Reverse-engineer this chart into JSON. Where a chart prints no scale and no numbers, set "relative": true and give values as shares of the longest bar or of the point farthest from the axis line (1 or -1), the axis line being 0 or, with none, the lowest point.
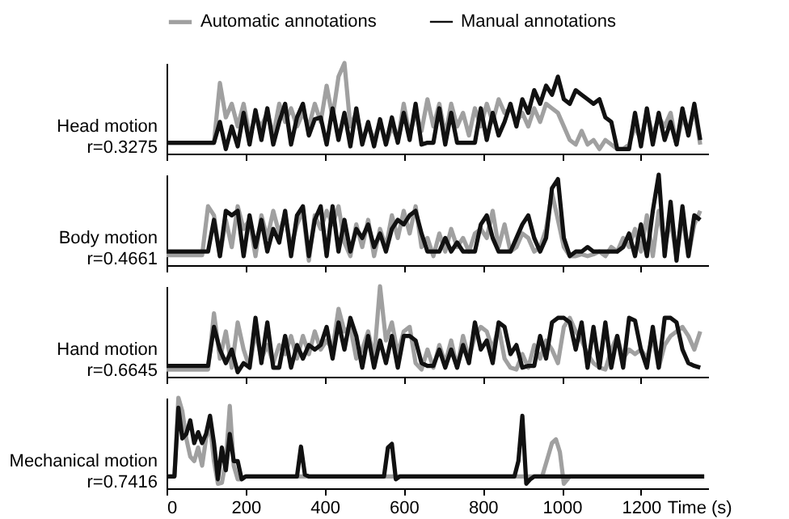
{
  "chart_data": [
    {
      "type": "line",
      "relative": true,
      "ylabel": "Head motion\nr=0.3275",
      "legend": "top",
      "xlim": [
        0,
        1370
      ],
      "xticks": [
        0,
        200,
        400,
        600,
        800,
        1000,
        1200
      ],
      "tick_labels": false,
      "x": [
        0,
        15,
        30,
        45,
        60,
        75,
        90,
        105,
        120,
        135,
        150,
        165,
        180,
        195,
        210,
        225,
        240,
        255,
        270,
        285,
        300,
        315,
        330,
        345,
        360,
        375,
        390,
        405,
        420,
        435,
        450,
        465,
        480,
        495,
        510,
        525,
        540,
        555,
        570,
        585,
        600,
        615,
        630,
        645,
        660,
        675,
        690,
        705,
        720,
        735,
        750,
        765,
        780,
        795,
        810,
        825,
        840,
        855,
        870,
        885,
        900,
        915,
        930,
        945,
        960,
        975,
        990,
        1005,
        1020,
        1035,
        1050,
        1065,
        1080,
        1095,
        1110,
        1125,
        1140,
        1155,
        1170,
        1185,
        1200,
        1215,
        1230,
        1245,
        1260,
        1275,
        1290,
        1305,
        1320,
        1335,
        1350
      ],
      "series": [
        {
          "name": "Automatic annotations",
          "color": "#a0a0a0",
          "values": [
            0.12,
            0.12,
            0.12,
            0.12,
            0.12,
            0.12,
            0.12,
            0.12,
            0.12,
            0.78,
            0.4,
            0.55,
            0.3,
            0.55,
            0.2,
            0.4,
            0.3,
            0.45,
            0.2,
            0.55,
            0.35,
            0.5,
            0.3,
            0.45,
            0.3,
            0.55,
            0.35,
            0.75,
            0.4,
            0.85,
            1.0,
            0.3,
            0.45,
            0.15,
            0.3,
            0.15,
            0.35,
            0.1,
            0.3,
            0.15,
            0.55,
            0.2,
            0.45,
            0.25,
            0.6,
            0.3,
            0.55,
            0.2,
            0.55,
            0.3,
            0.45,
            0.2,
            0.5,
            0.3,
            0.55,
            0.35,
            0.6,
            0.45,
            0.5,
            0.35,
            0.45,
            0.3,
            0.5,
            0.35,
            0.55,
            0.5,
            0.45,
            0.3,
            0.15,
            0.1,
            0.25,
            0.1,
            0.15,
            0.05,
            0.15,
            0.1,
            0.05,
            0.05,
            0.1,
            0.3,
            0.15,
            0.45,
            0.2,
            0.4,
            0.3,
            0.45,
            0.1,
            0.4,
            0.25,
            0.5,
            0.1
          ]
        },
        {
          "name": "Manual annotations",
          "color": "#111111",
          "values": [
            0.12,
            0.12,
            0.12,
            0.12,
            0.12,
            0.12,
            0.12,
            0.12,
            0.12,
            0.35,
            0.05,
            0.3,
            0.08,
            0.45,
            0.1,
            0.48,
            0.15,
            0.5,
            0.1,
            0.35,
            0.55,
            0.1,
            0.4,
            0.55,
            0.2,
            0.38,
            0.4,
            0.1,
            0.5,
            0.15,
            0.45,
            0.08,
            0.5,
            0.1,
            0.35,
            0.08,
            0.38,
            0.1,
            0.4,
            0.12,
            0.45,
            0.15,
            0.55,
            0.1,
            0.12,
            0.12,
            0.5,
            0.1,
            0.45,
            0.12,
            0.12,
            0.12,
            0.12,
            0.5,
            0.15,
            0.45,
            0.2,
            0.35,
            0.55,
            0.3,
            0.6,
            0.45,
            0.7,
            0.55,
            0.75,
            0.65,
            0.85,
            0.6,
            0.55,
            0.7,
            0.65,
            0.6,
            0.55,
            0.6,
            0.4,
            0.35,
            0.05,
            0.05,
            0.05,
            0.45,
            0.08,
            0.5,
            0.1,
            0.45,
            0.15,
            0.35,
            0.1,
            0.5,
            0.2,
            0.55,
            0.15
          ]
        }
      ]
    },
    {
      "type": "line",
      "relative": true,
      "ylabel": "Body motion\nr=0.4661",
      "xlim": [
        0,
        1370
      ],
      "xticks": [
        0,
        200,
        400,
        600,
        800,
        1000,
        1200
      ],
      "tick_labels": false,
      "x": [
        0,
        15,
        30,
        45,
        60,
        75,
        90,
        105,
        120,
        135,
        150,
        165,
        180,
        195,
        210,
        225,
        240,
        255,
        270,
        285,
        300,
        315,
        330,
        345,
        360,
        375,
        390,
        405,
        420,
        435,
        450,
        465,
        480,
        495,
        510,
        525,
        540,
        555,
        570,
        585,
        600,
        615,
        630,
        645,
        660,
        675,
        690,
        705,
        720,
        735,
        750,
        765,
        780,
        795,
        810,
        825,
        840,
        855,
        870,
        885,
        900,
        915,
        930,
        945,
        960,
        975,
        990,
        1005,
        1020,
        1035,
        1050,
        1065,
        1080,
        1095,
        1110,
        1125,
        1140,
        1155,
        1170,
        1185,
        1200,
        1215,
        1230,
        1245,
        1260,
        1275,
        1290,
        1305,
        1320,
        1335,
        1350
      ],
      "series": [
        {
          "color": "#a0a0a0",
          "values": [
            0.11,
            0.11,
            0.11,
            0.11,
            0.11,
            0.11,
            0.11,
            0.65,
            0.55,
            0.1,
            0.5,
            0.2,
            0.65,
            0.4,
            0.5,
            0.1,
            0.55,
            0.3,
            0.6,
            0.35,
            0.55,
            0.2,
            0.45,
            0.6,
            0.05,
            0.55,
            0.4,
            0.6,
            0.45,
            0.65,
            0.25,
            0.1,
            0.45,
            0.2,
            0.5,
            0.1,
            0.4,
            0.2,
            0.55,
            0.3,
            0.6,
            0.35,
            0.65,
            0.2,
            0.3,
            0.1,
            0.35,
            0.15,
            0.4,
            0.2,
            0.3,
            0.15,
            0.35,
            0.4,
            0.3,
            0.6,
            0.2,
            0.45,
            0.15,
            0.2,
            0.35,
            0.3,
            0.15,
            0.2,
            0.4,
            0.8,
            0.5,
            0.2,
            0.1,
            0.1,
            0.12,
            0.1,
            0.12,
            0.15,
            0.1,
            0.2,
            0.15,
            0.3,
            0.2,
            0.4,
            0.15,
            0.55,
            0.1,
            0.6,
            0.2,
            0.5,
            0.1,
            0.55,
            0.1,
            0.45,
            0.6
          ]
        },
        {
          "color": "#111111",
          "values": [
            0.15,
            0.15,
            0.15,
            0.15,
            0.15,
            0.15,
            0.15,
            0.15,
            0.5,
            0.1,
            0.6,
            0.55,
            0.6,
            0.1,
            0.55,
            0.2,
            0.5,
            0.15,
            0.4,
            0.25,
            0.6,
            0.1,
            0.55,
            0.65,
            0.1,
            0.5,
            0.65,
            0.1,
            0.65,
            0.15,
            0.5,
            0.15,
            0.4,
            0.3,
            0.45,
            0.2,
            0.35,
            0.15,
            0.4,
            0.5,
            0.45,
            0.55,
            0.6,
            0.35,
            0.15,
            0.15,
            0.15,
            0.3,
            0.15,
            0.25,
            0.15,
            0.15,
            0.15,
            0.45,
            0.55,
            0.3,
            0.15,
            0.15,
            0.15,
            0.3,
            0.45,
            0.55,
            0.3,
            0.15,
            0.3,
            0.85,
            0.95,
            0.3,
            0.1,
            0.15,
            0.15,
            0.2,
            0.15,
            0.15,
            0.15,
            0.15,
            0.15,
            0.2,
            0.35,
            0.1,
            0.45,
            0.1,
            0.6,
            1.0,
            0.1,
            0.7,
            0.05,
            0.65,
            0.1,
            0.55,
            0.5
          ]
        }
      ]
    },
    {
      "type": "line",
      "relative": true,
      "ylabel": "Hand motion\nr=0.6645",
      "xlim": [
        0,
        1370
      ],
      "xticks": [
        0,
        200,
        400,
        600,
        800,
        1000,
        1200
      ],
      "tick_labels": false,
      "x": [
        0,
        15,
        30,
        45,
        60,
        75,
        90,
        105,
        120,
        135,
        150,
        165,
        180,
        195,
        210,
        225,
        240,
        255,
        270,
        285,
        300,
        315,
        330,
        345,
        360,
        375,
        390,
        405,
        420,
        435,
        450,
        465,
        480,
        495,
        510,
        525,
        540,
        555,
        570,
        585,
        600,
        615,
        630,
        645,
        660,
        675,
        690,
        705,
        720,
        735,
        750,
        765,
        780,
        795,
        810,
        825,
        840,
        855,
        870,
        885,
        900,
        915,
        930,
        945,
        960,
        975,
        990,
        1005,
        1020,
        1035,
        1050,
        1065,
        1080,
        1095,
        1110,
        1125,
        1140,
        1155,
        1170,
        1185,
        1200,
        1215,
        1230,
        1245,
        1260,
        1275,
        1290,
        1305,
        1320,
        1335,
        1350
      ],
      "series": [
        {
          "color": "#a0a0a0",
          "values": [
            0.08,
            0.08,
            0.08,
            0.08,
            0.08,
            0.08,
            0.08,
            0.08,
            0.7,
            0.2,
            0.5,
            0.1,
            0.6,
            0.3,
            0.1,
            0.5,
            0.2,
            0.35,
            0.15,
            0.35,
            0.25,
            0.45,
            0.2,
            0.45,
            0.25,
            0.5,
            0.3,
            0.4,
            0.3,
            0.75,
            0.5,
            0.55,
            0.2,
            0.3,
            0.5,
            0.2,
            1.0,
            0.4,
            0.6,
            0.25,
            0.5,
            0.55,
            0.15,
            0.08,
            0.3,
            0.1,
            0.35,
            0.15,
            0.4,
            0.1,
            0.45,
            0.2,
            0.45,
            0.55,
            0.5,
            0.3,
            0.55,
            0.2,
            0.1,
            0.08,
            0.25,
            0.1,
            0.35,
            0.2,
            0.4,
            0.3,
            0.15,
            0.55,
            0.65,
            0.5,
            0.4,
            0.25,
            0.15,
            0.1,
            0.08,
            0.3,
            0.45,
            0.2,
            0.3,
            0.25,
            0.3,
            0.2,
            0.45,
            0.1,
            0.35,
            0.45,
            0.5,
            0.55,
            0.45,
            0.3,
            0.5
          ]
        },
        {
          "color": "#111111",
          "values": [
            0.12,
            0.12,
            0.12,
            0.12,
            0.12,
            0.12,
            0.12,
            0.12,
            0.55,
            0.3,
            0.15,
            0.3,
            0.05,
            0.15,
            0.1,
            0.65,
            0.15,
            0.6,
            0.1,
            0.1,
            0.45,
            0.1,
            0.35,
            0.2,
            0.35,
            0.3,
            0.35,
            0.55,
            0.2,
            0.6,
            0.3,
            0.65,
            0.45,
            0.1,
            0.45,
            0.1,
            0.4,
            0.15,
            0.45,
            0.1,
            0.45,
            0.45,
            0.4,
            0.15,
            0.12,
            0.12,
            0.3,
            0.1,
            0.3,
            0.1,
            0.35,
            0.15,
            0.6,
            0.3,
            0.4,
            0.15,
            0.6,
            0.55,
            0.25,
            0.35,
            0.1,
            0.12,
            0.12,
            0.45,
            0.2,
            0.6,
            0.65,
            0.65,
            0.6,
            0.3,
            0.6,
            0.1,
            0.55,
            0.1,
            0.6,
            0.1,
            0.45,
            0.1,
            0.65,
            0.62,
            0.3,
            0.1,
            0.55,
            0.1,
            0.65,
            0.65,
            0.6,
            0.3,
            0.15,
            0.12,
            0.1
          ]
        }
      ]
    },
    {
      "type": "line",
      "relative": true,
      "ylabel": "Mechanical motion\nr=0.7416",
      "xlabel": "Time (s)",
      "xlim": [
        0,
        1370
      ],
      "xticks": [
        0,
        200,
        400,
        600,
        800,
        1000,
        1200
      ],
      "tick_labels": "x",
      "series": [
        {
          "color": "#a0a0a0",
          "x": [
            0,
            20,
            30,
            40,
            50,
            60,
            70,
            80,
            90,
            100,
            110,
            120,
            130,
            140,
            150,
            160,
            170,
            180,
            190,
            200,
            950,
            965,
            975,
            985,
            995,
            1005,
            1020,
            1360
          ],
          "values": [
            0.13,
            0.13,
            1.0,
            0.85,
            0.55,
            0.35,
            0.3,
            0.45,
            0.25,
            0.55,
            0.7,
            0.3,
            0.05,
            0.06,
            0.3,
            0.91,
            0.25,
            0.1,
            0.1,
            0.13,
            0.13,
            0.35,
            0.5,
            0.54,
            0.4,
            0.05,
            0.13,
            0.13
          ]
        },
        {
          "color": "#111111",
          "x": [
            0,
            20,
            30,
            40,
            50,
            60,
            70,
            80,
            90,
            100,
            110,
            120,
            130,
            140,
            150,
            160,
            170,
            180,
            190,
            200,
            330,
            340,
            350,
            360,
            550,
            560,
            570,
            580,
            590,
            880,
            890,
            900,
            910,
            920,
            930,
            1360
          ],
          "values": [
            0.13,
            0.13,
            0.89,
            0.55,
            0.6,
            0.75,
            0.5,
            0.62,
            0.5,
            0.6,
            0.8,
            0.5,
            0.1,
            0.45,
            0.2,
            0.6,
            0.3,
            0.3,
            0.1,
            0.13,
            0.13,
            0.46,
            0.15,
            0.13,
            0.13,
            0.45,
            0.49,
            0.1,
            0.13,
            0.13,
            0.3,
            0.8,
            0.05,
            0.1,
            0.13,
            0.13
          ]
        }
      ]
    }
  ]
}
